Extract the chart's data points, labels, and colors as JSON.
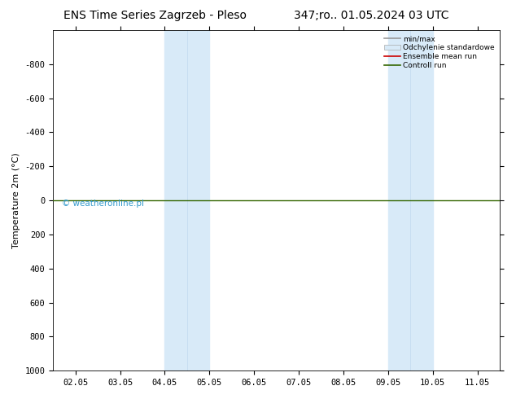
{
  "title_left": "ENS Time Series Zagrzeb - Pleso",
  "title_right": "347;ro.. 01.05.2024 03 UTC",
  "ylabel": "Temperature 2m (°C)",
  "watermark": "© weatheronline.pl",
  "ylim_bottom": 1000,
  "ylim_top": -1000,
  "yticks": [
    -800,
    -600,
    -400,
    -200,
    0,
    200,
    400,
    600,
    800,
    1000
  ],
  "x_labels": [
    "02.05",
    "03.05",
    "04.05",
    "05.05",
    "06.05",
    "07.05",
    "08.05",
    "09.05",
    "10.05",
    "11.05"
  ],
  "x_positions": [
    0,
    1,
    2,
    3,
    4,
    5,
    6,
    7,
    8,
    9
  ],
  "shaded_regions": [
    {
      "xmin": 2.0,
      "xmax": 2.5,
      "color": "#ddeeff"
    },
    {
      "xmin": 2.5,
      "xmax": 3.0,
      "color": "#c8ddf0"
    },
    {
      "xmin": 7.0,
      "xmax": 7.5,
      "color": "#ddeeff"
    },
    {
      "xmin": 7.5,
      "xmax": 8.0,
      "color": "#c8ddf0"
    }
  ],
  "horizontal_line_y": 0,
  "horizontal_line_color": "#336600",
  "ensemble_mean_color": "#cc0000",
  "control_color": "#336600",
  "minmax_color": "#999999",
  "std_color": "#ccddee",
  "background_color": "#ffffff",
  "legend_items": [
    {
      "label": "min/max",
      "color": "#999999",
      "lw": 1.2
    },
    {
      "label": "Odchylenie standardowe",
      "color": "#c8ddf0",
      "lw": 8
    },
    {
      "label": "Ensemble mean run",
      "color": "#cc0000",
      "lw": 1.2
    },
    {
      "label": "Controll run",
      "color": "#336600",
      "lw": 1.2
    }
  ],
  "title_fontsize": 10,
  "axis_fontsize": 8,
  "tick_fontsize": 7.5,
  "watermark_fontsize": 7.5,
  "watermark_color": "#3399cc",
  "figwidth": 6.34,
  "figheight": 4.9,
  "dpi": 100
}
